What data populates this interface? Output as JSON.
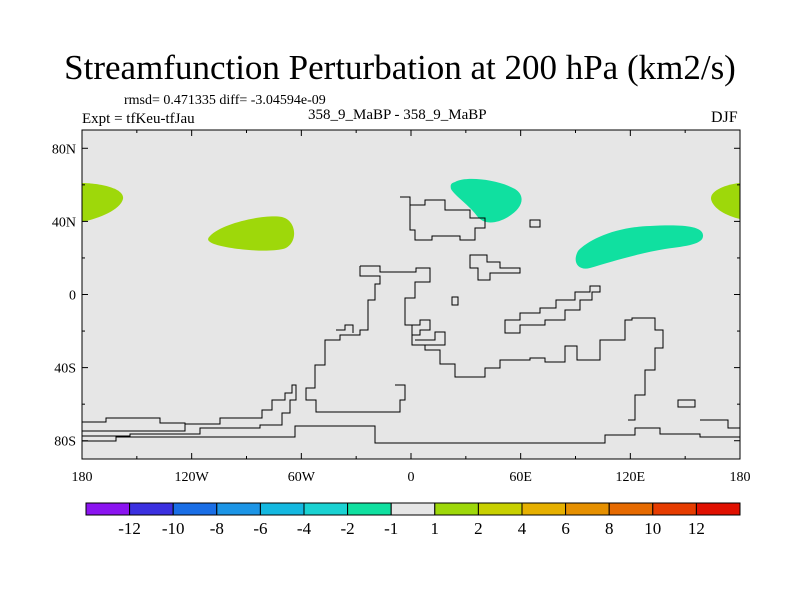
{
  "chart_data": {
    "type": "heatmap",
    "title": "Streamfunction Perturbation at 200 hPa (km2/s)",
    "subtitle": "358_9_MaBP - 358_9_MaBP",
    "stats": "rmsd= 0.471335 diff= -3.04594e-09",
    "left_label": "Expt = tfKeu-tfJau",
    "right_label": "DJF",
    "x_ticks": [
      {
        "value": -180,
        "label": "180"
      },
      {
        "value": -120,
        "label": "120W"
      },
      {
        "value": -60,
        "label": "60W"
      },
      {
        "value": 0,
        "label": "0"
      },
      {
        "value": 60,
        "label": "60E"
      },
      {
        "value": 120,
        "label": "120E"
      },
      {
        "value": 180,
        "label": "180"
      }
    ],
    "y_ticks": [
      {
        "value": 80,
        "label": "80N"
      },
      {
        "value": 40,
        "label": "40N"
      },
      {
        "value": 0,
        "label": "0"
      },
      {
        "value": -40,
        "label": "40S"
      },
      {
        "value": -80,
        "label": "80S"
      }
    ],
    "xlim": [
      -180,
      180
    ],
    "ylim": [
      -90,
      90
    ],
    "background_color": "#e6e6e6",
    "colorbar": {
      "colors": [
        "#8b14f0",
        "#3b30e0",
        "#1a6ee6",
        "#1c95e6",
        "#14b8e0",
        "#1ad2d2",
        "#10e0a0",
        "#e6e6e6",
        "#9ed80a",
        "#c8d000",
        "#e6b000",
        "#e69000",
        "#e66a00",
        "#e63c00",
        "#e01000"
      ],
      "labels": [
        "-12",
        "-10",
        "-8",
        "-6",
        "-4",
        "-2",
        "-1",
        "1",
        "2",
        "4",
        "6",
        "8",
        "10",
        "12"
      ]
    },
    "anomalies": [
      {
        "level": "1 to 2",
        "color": "#9ed80a",
        "lon": -170,
        "lat": 50
      },
      {
        "level": "1 to 2",
        "color": "#9ed80a",
        "lon": -90,
        "lat": 34
      },
      {
        "level": "1 to 2",
        "color": "#9ed80a",
        "lon": 175,
        "lat": 50
      },
      {
        "level": "-2 to -1",
        "color": "#10e0a0",
        "lon": 40,
        "lat": 57
      },
      {
        "level": "-2 to -1",
        "color": "#10e0a0",
        "lon": 122,
        "lat": 32
      }
    ]
  }
}
